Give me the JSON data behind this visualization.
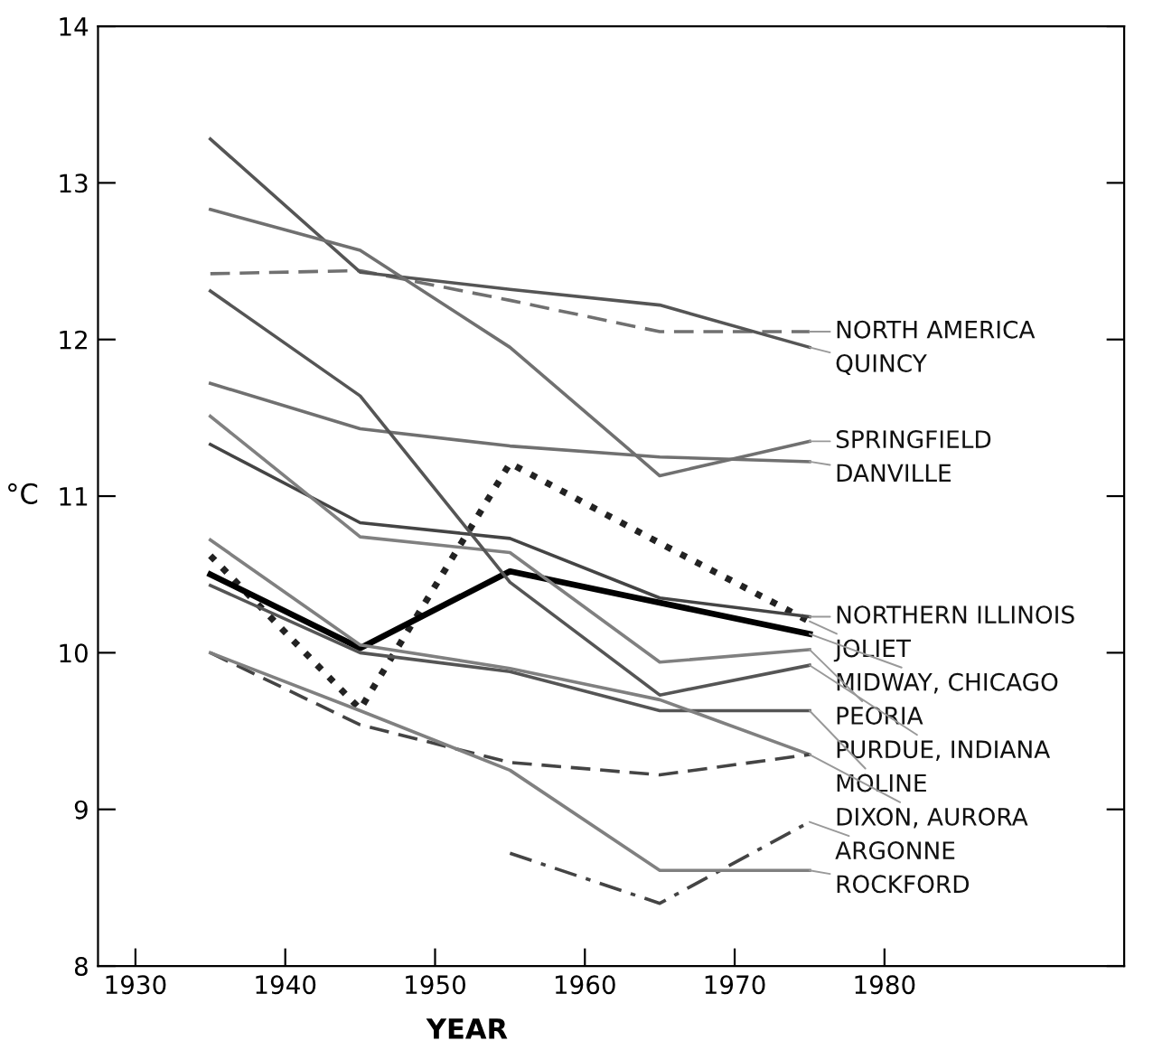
{
  "chart_data": {
    "type": "line",
    "xlabel": "YEAR",
    "ylabel": "°C",
    "x": [
      1935,
      1945,
      1955,
      1965,
      1975
    ],
    "xlim": [
      1927.5,
      1996
    ],
    "xticks": [
      1930,
      1940,
      1950,
      1960,
      1970,
      1980
    ],
    "ylim": [
      8,
      14
    ],
    "yticks": [
      8,
      9,
      10,
      11,
      12,
      13,
      14
    ],
    "grid": false,
    "legend": false,
    "marker": "none",
    "series": [
      {
        "name": "NORTH AMERICA",
        "color": "#707070",
        "line_style": "dashed",
        "values": [
          12.42,
          12.44,
          12.25,
          12.05,
          12.05
        ]
      },
      {
        "name": "QUINCY",
        "color": "#555555",
        "line_style": "solid",
        "values": [
          13.28,
          12.43,
          12.32,
          12.22,
          11.95
        ]
      },
      {
        "name": "SPRINGFIELD",
        "color": "#707070",
        "line_style": "solid",
        "values": [
          12.83,
          12.57,
          11.95,
          11.13,
          11.35
        ]
      },
      {
        "name": "DANVILLE",
        "color": "#707070",
        "line_style": "solid",
        "values": [
          11.72,
          11.43,
          11.32,
          11.25,
          11.22
        ]
      },
      {
        "name": "JOLIET",
        "color": "#222222",
        "line_style": "dotted",
        "values": [
          10.62,
          9.64,
          11.21,
          10.7,
          10.2
        ]
      },
      {
        "name": "NORTHERN ILLINOIS",
        "color": "#444444",
        "line_style": "solid",
        "values": [
          11.33,
          10.83,
          10.73,
          10.35,
          10.23
        ]
      },
      {
        "name": "MIDWAY, CHICAGO",
        "color": "#000000",
        "line_style": "solid",
        "values": [
          10.5,
          10.03,
          10.52,
          10.32,
          10.12
        ]
      },
      {
        "name": "PEORIA",
        "color": "#808080",
        "line_style": "solid",
        "values": [
          11.51,
          10.74,
          10.64,
          9.94,
          10.02
        ]
      },
      {
        "name": "PURDUE, INDIANA",
        "color": "#555555",
        "line_style": "solid",
        "values": [
          12.31,
          11.64,
          10.45,
          9.73,
          9.92
        ]
      },
      {
        "name": "MOLINE",
        "color": "#555555",
        "line_style": "solid",
        "values": [
          10.43,
          10.0,
          9.88,
          9.63,
          9.63
        ]
      },
      {
        "color": "#808080",
        "line_style": "solid",
        "values": [
          10.72,
          10.05,
          9.9,
          9.7,
          9.35
        ]
      },
      {
        "name": "DIXON, AURORA",
        "color": "#444444",
        "line_style": "dashed",
        "values": [
          10.0,
          9.54,
          9.3,
          9.22,
          9.35
        ]
      },
      {
        "name": "ARGONNE",
        "color": "#444444",
        "line_style": "dashdot",
        "values": [
          null,
          null,
          8.72,
          8.4,
          8.92
        ]
      },
      {
        "name": "ROCKFORD",
        "color": "#808080",
        "line_style": "solid",
        "values": [
          10.0,
          9.63,
          9.25,
          8.61,
          8.61
        ]
      }
    ]
  }
}
